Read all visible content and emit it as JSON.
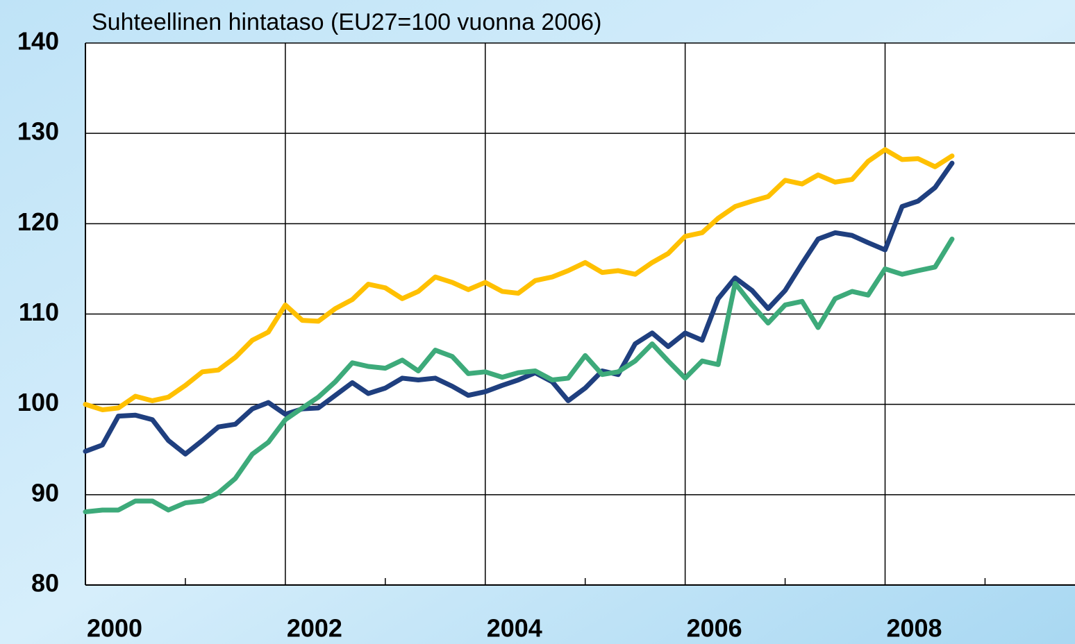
{
  "chart_data": {
    "type": "line",
    "title": "Suhteellinen hintataso (EU27=100 vuonna 2006)",
    "x": [
      2000,
      2000.17,
      2000.33,
      2000.5,
      2000.67,
      2000.83,
      2001,
      2001.17,
      2001.33,
      2001.5,
      2001.67,
      2001.83,
      2002,
      2002.17,
      2002.33,
      2002.5,
      2002.67,
      2002.83,
      2003,
      2003.17,
      2003.33,
      2003.5,
      2003.67,
      2003.83,
      2004,
      2004.17,
      2004.33,
      2004.5,
      2004.67,
      2004.83,
      2005,
      2005.17,
      2005.33,
      2005.5,
      2005.67,
      2005.83,
      2006,
      2006.17,
      2006.33,
      2006.5,
      2006.67,
      2006.83,
      2007,
      2007.17,
      2007.33,
      2007.5,
      2007.67,
      2007.83,
      2008,
      2008.17,
      2008.33,
      2008.5,
      2008.67
    ],
    "series": [
      {
        "color": "#ffc000",
        "values": [
          100.0,
          99.4,
          99.6,
          100.9,
          100.4,
          100.8,
          102.1,
          103.6,
          103.8,
          105.2,
          107.1,
          108.0,
          111.0,
          109.3,
          109.2,
          110.6,
          111.6,
          113.3,
          112.9,
          111.7,
          112.5,
          114.1,
          113.5,
          112.7,
          113.5,
          112.5,
          112.3,
          113.7,
          114.1,
          114.8,
          115.7,
          114.6,
          114.8,
          114.4,
          115.7,
          116.7,
          118.6,
          119.0,
          120.6,
          121.9,
          122.5,
          123.0,
          124.8,
          124.4,
          125.4,
          124.6,
          124.9,
          126.9,
          128.2,
          127.1,
          127.2,
          126.3,
          127.5
        ]
      },
      {
        "color": "#1f3f7f",
        "values": [
          94.8,
          95.5,
          98.7,
          98.8,
          98.3,
          96.0,
          94.5,
          96.0,
          97.5,
          97.8,
          99.5,
          100.2,
          98.9,
          99.5,
          99.6,
          101.0,
          102.4,
          101.2,
          101.8,
          102.9,
          102.7,
          102.9,
          102.0,
          101.0,
          101.4,
          102.1,
          102.7,
          103.5,
          102.5,
          100.4,
          101.8,
          103.7,
          103.3,
          106.7,
          107.9,
          106.4,
          107.9,
          107.1,
          111.7,
          114.0,
          112.6,
          110.6,
          112.6,
          115.6,
          118.3,
          119.0,
          118.7,
          117.9,
          117.1,
          121.9,
          122.5,
          124.0,
          126.7
        ]
      },
      {
        "color": "#3daa7a",
        "values": [
          88.1,
          88.3,
          88.3,
          89.3,
          89.3,
          88.3,
          89.1,
          89.3,
          90.2,
          91.8,
          94.5,
          95.8,
          98.3,
          99.6,
          100.8,
          102.5,
          104.6,
          104.2,
          104.0,
          104.9,
          103.7,
          106.0,
          105.3,
          103.4,
          103.6,
          103.0,
          103.5,
          103.7,
          102.7,
          102.9,
          105.4,
          103.3,
          103.6,
          104.8,
          106.7,
          104.8,
          102.9,
          104.8,
          104.4,
          113.4,
          111.0,
          109.0,
          111.0,
          111.4,
          108.5,
          111.7,
          112.5,
          112.1,
          115.0,
          114.4,
          114.8,
          115.2,
          118.3
        ]
      }
    ],
    "xlim": [
      2000,
      2009.9
    ],
    "xticks": [
      2000,
      2002,
      2004,
      2006,
      2008
    ],
    "xminorticks": [
      2001,
      2003,
      2005,
      2007,
      2009
    ],
    "ylim": [
      80,
      140
    ],
    "yticks": [
      80,
      90,
      100,
      110,
      120,
      130,
      140
    ],
    "grid": true
  }
}
